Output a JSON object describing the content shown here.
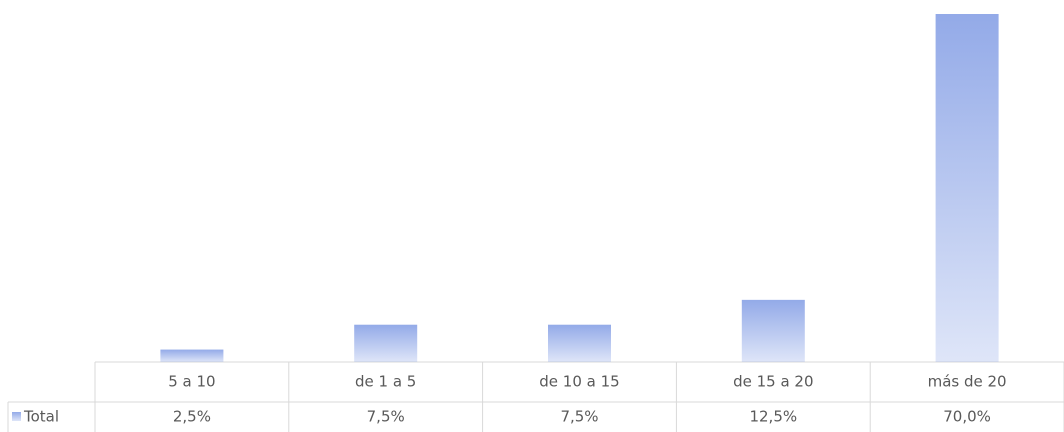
{
  "chart_data": {
    "type": "bar",
    "categories": [
      "5 a 10",
      "de 1 a 5",
      "de 10 a 15",
      "de 15 a 20",
      "más de 20"
    ],
    "series": [
      {
        "name": "Total",
        "color": "#93aae8",
        "values": [
          2.5,
          7.5,
          7.5,
          12.5,
          70.0
        ],
        "value_labels": [
          "2,5%",
          "7,5%",
          "7,5%",
          "12,5%",
          "70,0%"
        ]
      }
    ]
  }
}
